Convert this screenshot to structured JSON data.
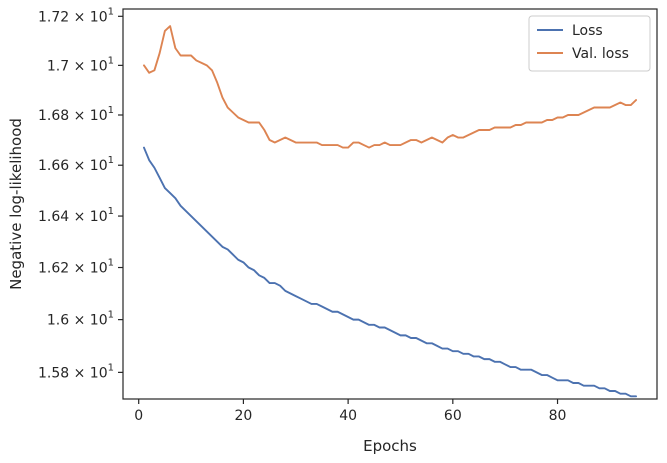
{
  "chart_data": {
    "type": "line",
    "title": "",
    "xlabel": "Epochs",
    "ylabel": "Negative log-likelihood",
    "yscale": "log",
    "xlim": [
      -3,
      99
    ],
    "ylim": [
      15.7,
      17.23
    ],
    "grid": false,
    "legend_location": "top-right",
    "x_ticks": [
      {
        "value": 0,
        "label": "0"
      },
      {
        "value": 20,
        "label": "20"
      },
      {
        "value": 40,
        "label": "40"
      },
      {
        "value": 60,
        "label": "60"
      },
      {
        "value": 80,
        "label": "80"
      }
    ],
    "y_ticks": [
      {
        "value": 15.8,
        "mantissa": "1.58",
        "base": "10",
        "exponent": "1"
      },
      {
        "value": 16.0,
        "mantissa": "1.6",
        "base": "10",
        "exponent": "1"
      },
      {
        "value": 16.2,
        "mantissa": "1.62",
        "base": "10",
        "exponent": "1"
      },
      {
        "value": 16.4,
        "mantissa": "1.64",
        "base": "10",
        "exponent": "1"
      },
      {
        "value": 16.6,
        "mantissa": "1.66",
        "base": "10",
        "exponent": "1"
      },
      {
        "value": 16.8,
        "mantissa": "1.68",
        "base": "10",
        "exponent": "1"
      },
      {
        "value": 17.0,
        "mantissa": "1.7",
        "base": "10",
        "exponent": "1"
      },
      {
        "value": 17.2,
        "mantissa": "1.72",
        "base": "10",
        "exponent": "1"
      }
    ],
    "times_symbol": "×",
    "x": [
      1,
      2,
      3,
      4,
      5,
      6,
      7,
      8,
      9,
      10,
      11,
      12,
      13,
      14,
      15,
      16,
      17,
      18,
      19,
      20,
      21,
      22,
      23,
      24,
      25,
      26,
      27,
      28,
      29,
      30,
      31,
      32,
      33,
      34,
      35,
      36,
      37,
      38,
      39,
      40,
      41,
      42,
      43,
      44,
      45,
      46,
      47,
      48,
      49,
      50,
      51,
      52,
      53,
      54,
      55,
      56,
      57,
      58,
      59,
      60,
      61,
      62,
      63,
      64,
      65,
      66,
      67,
      68,
      69,
      70,
      71,
      72,
      73,
      74,
      75,
      76,
      77,
      78,
      79,
      80,
      81,
      82,
      83,
      84,
      85,
      86,
      87,
      88,
      89,
      90,
      91,
      92,
      93,
      94,
      95
    ],
    "series": [
      {
        "name": "Loss",
        "color": "#4c72b0",
        "values": [
          16.67,
          16.62,
          16.59,
          16.55,
          16.51,
          16.49,
          16.47,
          16.44,
          16.42,
          16.4,
          16.38,
          16.36,
          16.34,
          16.32,
          16.3,
          16.28,
          16.27,
          16.25,
          16.23,
          16.22,
          16.2,
          16.19,
          16.17,
          16.16,
          16.14,
          16.14,
          16.13,
          16.11,
          16.1,
          16.09,
          16.08,
          16.07,
          16.06,
          16.06,
          16.05,
          16.04,
          16.03,
          16.03,
          16.02,
          16.01,
          16.0,
          16.0,
          15.99,
          15.98,
          15.98,
          15.97,
          15.97,
          15.96,
          15.95,
          15.94,
          15.94,
          15.93,
          15.93,
          15.92,
          15.91,
          15.91,
          15.9,
          15.89,
          15.89,
          15.88,
          15.88,
          15.87,
          15.87,
          15.86,
          15.86,
          15.85,
          15.85,
          15.84,
          15.84,
          15.83,
          15.82,
          15.82,
          15.81,
          15.81,
          15.81,
          15.8,
          15.79,
          15.79,
          15.78,
          15.77,
          15.77,
          15.77,
          15.76,
          15.76,
          15.75,
          15.75,
          15.75,
          15.74,
          15.74,
          15.73,
          15.73,
          15.72,
          15.72,
          15.71,
          15.71
        ]
      },
      {
        "name": "Val. loss",
        "color": "#dd8452",
        "values": [
          17.0,
          16.97,
          16.98,
          17.05,
          17.14,
          17.16,
          17.07,
          17.04,
          17.04,
          17.04,
          17.02,
          17.01,
          17.0,
          16.98,
          16.93,
          16.87,
          16.83,
          16.81,
          16.79,
          16.78,
          16.77,
          16.77,
          16.77,
          16.74,
          16.7,
          16.69,
          16.7,
          16.71,
          16.7,
          16.69,
          16.69,
          16.69,
          16.69,
          16.69,
          16.68,
          16.68,
          16.68,
          16.68,
          16.67,
          16.67,
          16.69,
          16.69,
          16.68,
          16.67,
          16.68,
          16.68,
          16.69,
          16.68,
          16.68,
          16.68,
          16.69,
          16.7,
          16.7,
          16.69,
          16.7,
          16.71,
          16.7,
          16.69,
          16.71,
          16.72,
          16.71,
          16.71,
          16.72,
          16.73,
          16.74,
          16.74,
          16.74,
          16.75,
          16.75,
          16.75,
          16.75,
          16.76,
          16.76,
          16.77,
          16.77,
          16.77,
          16.77,
          16.78,
          16.78,
          16.79,
          16.79,
          16.8,
          16.8,
          16.8,
          16.81,
          16.82,
          16.83,
          16.83,
          16.83,
          16.83,
          16.84,
          16.85,
          16.84,
          16.84,
          16.86
        ]
      }
    ]
  }
}
